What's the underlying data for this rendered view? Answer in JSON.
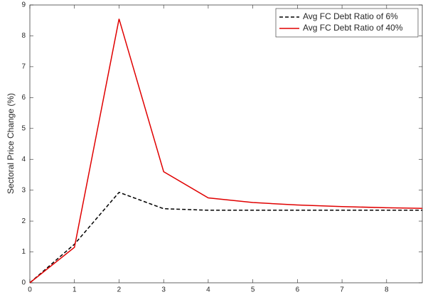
{
  "chart_data": {
    "type": "line",
    "ylabel": "Sectoral Price Change (%)",
    "x": [
      0,
      1,
      2,
      3,
      4,
      5,
      6,
      7,
      8,
      8.8
    ],
    "series": [
      {
        "name": "Avg FC Debt Ratio of 6%",
        "color": "#000000",
        "dash": true,
        "values": [
          0,
          1.25,
          2.93,
          2.4,
          2.35,
          2.35,
          2.35,
          2.35,
          2.35,
          2.35
        ]
      },
      {
        "name": "Avg FC Debt Ratio of 40%",
        "color": "#e00000",
        "dash": false,
        "values": [
          0,
          1.15,
          8.55,
          3.6,
          2.75,
          2.6,
          2.52,
          2.47,
          2.43,
          2.41
        ]
      }
    ],
    "xlim": [
      0,
      8.8
    ],
    "xticks": [
      0,
      1,
      2,
      3,
      4,
      5,
      6,
      7,
      8
    ],
    "ylim": [
      0,
      9
    ],
    "yticks": [
      0,
      1,
      2,
      3,
      4,
      5,
      6,
      7,
      8,
      9
    ],
    "grid": false,
    "legend": "upper right"
  }
}
